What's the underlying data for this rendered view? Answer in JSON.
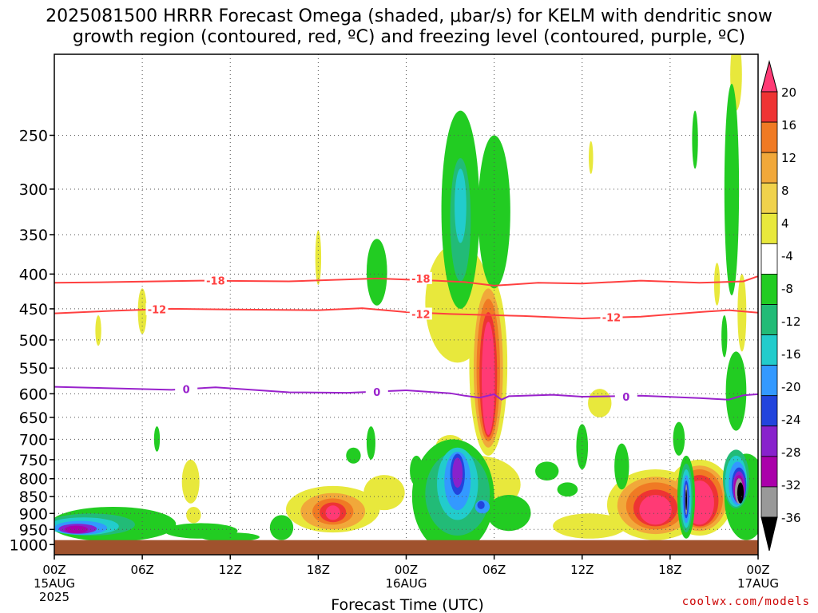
{
  "chart_data": {
    "type": "heatmap",
    "title_line1": "2025081500 HRRR Forecast Omega (shaded, μbar/s) for KELM with dendritic snow",
    "title_line2": "growth region (contoured, red, ºC) and freezing level (contoured, purple, ºC)",
    "xlabel": "Forecast Time (UTC)",
    "ylabel": "",
    "x_unit": "hour",
    "xlim": [
      0,
      48
    ],
    "y_axis_scale": "pressure",
    "ylim": [
      1035,
      190
    ],
    "ground_top": 985,
    "y_ticks": [
      250,
      300,
      350,
      400,
      450,
      500,
      550,
      600,
      650,
      700,
      750,
      800,
      850,
      900,
      950,
      1000
    ],
    "x_ticks": [
      {
        "hour": 0,
        "label": "00Z",
        "sub1": "15AUG",
        "sub2": "2025"
      },
      {
        "hour": 6,
        "label": "06Z",
        "sub1": "",
        "sub2": ""
      },
      {
        "hour": 12,
        "label": "12Z",
        "sub1": "",
        "sub2": ""
      },
      {
        "hour": 18,
        "label": "18Z",
        "sub1": "",
        "sub2": ""
      },
      {
        "hour": 24,
        "label": "00Z",
        "sub1": "16AUG",
        "sub2": ""
      },
      {
        "hour": 30,
        "label": "06Z",
        "sub1": "",
        "sub2": ""
      },
      {
        "hour": 36,
        "label": "12Z",
        "sub1": "",
        "sub2": ""
      },
      {
        "hour": 42,
        "label": "18Z",
        "sub1": "",
        "sub2": ""
      },
      {
        "hour": 48,
        "label": "00Z",
        "sub1": "17AUG",
        "sub2": ""
      }
    ],
    "grid": true,
    "colorbar": {
      "levels": [
        "20",
        "16",
        "12",
        "8",
        "4",
        "-4",
        "-8",
        "-12",
        "-16",
        "-20",
        "-24",
        "-28",
        "-32",
        "-36"
      ],
      "colors": [
        "#ff3a75",
        "#ee3333",
        "#f07a24",
        "#f1a83a",
        "#f0d24c",
        "#e8e83c",
        "#ffffff",
        "#22cc22",
        "#22bb77",
        "#22cccc",
        "#3399ff",
        "#2244dd",
        "#8822cc",
        "#aa00aa",
        "#999999",
        "#000000"
      ]
    },
    "contours": [
      {
        "name": "-18",
        "color": "#ff4040",
        "values": [
          [
            0,
            412
          ],
          [
            4,
            411
          ],
          [
            10,
            409
          ],
          [
            16,
            410
          ],
          [
            22,
            406
          ],
          [
            26,
            409
          ],
          [
            28,
            411
          ],
          [
            30,
            416
          ],
          [
            33,
            412
          ],
          [
            36,
            413
          ],
          [
            40,
            409
          ],
          [
            44,
            412
          ],
          [
            47,
            410
          ],
          [
            48,
            403
          ]
        ],
        "labels": [
          [
            11,
            409
          ],
          [
            25,
            406
          ]
        ]
      },
      {
        "name": "-12",
        "color": "#ff4040",
        "values": [
          [
            0,
            457
          ],
          [
            4,
            453
          ],
          [
            8,
            450
          ],
          [
            12,
            451
          ],
          [
            18,
            452
          ],
          [
            21,
            449
          ],
          [
            24,
            455
          ],
          [
            27,
            458
          ],
          [
            32,
            461
          ],
          [
            36,
            465
          ],
          [
            40,
            462
          ],
          [
            44,
            455
          ],
          [
            46,
            452
          ],
          [
            48,
            456
          ]
        ],
        "labels": [
          [
            7,
            451
          ],
          [
            25,
            458
          ],
          [
            38,
            463
          ]
        ]
      },
      {
        "name": "0",
        "color": "#9922cc",
        "values": [
          [
            0,
            586
          ],
          [
            4,
            589
          ],
          [
            8,
            592
          ],
          [
            11,
            587
          ],
          [
            16,
            597
          ],
          [
            20,
            598
          ],
          [
            24,
            593
          ],
          [
            27,
            599
          ],
          [
            28,
            604
          ],
          [
            29,
            608
          ],
          [
            30,
            601
          ],
          [
            30.5,
            612
          ],
          [
            31,
            605
          ],
          [
            34,
            602
          ],
          [
            36,
            606
          ],
          [
            40,
            604
          ],
          [
            44,
            609
          ],
          [
            46,
            612
          ],
          [
            47,
            603
          ],
          [
            48,
            601
          ]
        ],
        "labels": [
          [
            9,
            591
          ],
          [
            22,
            596
          ],
          [
            39,
            606
          ]
        ]
      }
    ],
    "shaded_regions": [
      {
        "level": "4",
        "color": "#e8e83c",
        "cx": 46.5,
        "cy": 205,
        "rx": 0.4,
        "ry": 25
      },
      {
        "level": "4",
        "color": "#e8e83c",
        "cx": 36.6,
        "cy": 270,
        "rx": 0.15,
        "ry": 15
      },
      {
        "level": "4",
        "color": "#e8e83c",
        "cx": 27.2,
        "cy": 305,
        "rx": 0.25,
        "ry": 40
      },
      {
        "level": "4",
        "color": "#e8e83c",
        "cx": 18,
        "cy": 380,
        "rx": 0.2,
        "ry": 35
      },
      {
        "level": "4",
        "color": "#e8e83c",
        "cx": 6,
        "cy": 455,
        "rx": 0.3,
        "ry": 35
      },
      {
        "level": "4",
        "color": "#e8e83c",
        "cx": 3,
        "cy": 485,
        "rx": 0.2,
        "ry": 25
      },
      {
        "level": "4",
        "color": "#e8e83c",
        "cx": 45.2,
        "cy": 415,
        "rx": 0.2,
        "ry": 30
      },
      {
        "level": "4",
        "color": "#e8e83c",
        "cx": 46.9,
        "cy": 460,
        "rx": 0.3,
        "ry": 60
      },
      {
        "level": "4",
        "color": "#e8e83c",
        "cx": 27.5,
        "cy": 450,
        "rx": 2.2,
        "ry": 90
      },
      {
        "level": "4",
        "color": "#e8e83c",
        "cx": 29.6,
        "cy": 570,
        "rx": 1.3,
        "ry": 170
      },
      {
        "level": "4",
        "color": "#e8e83c",
        "cx": 37.2,
        "cy": 620,
        "rx": 0.8,
        "ry": 30
      },
      {
        "level": "4",
        "color": "#e8e83c",
        "cx": 9.3,
        "cy": 810,
        "rx": 0.6,
        "ry": 60
      },
      {
        "level": "4",
        "color": "#e8e83c",
        "cx": 9.5,
        "cy": 905,
        "rx": 0.5,
        "ry": 25
      },
      {
        "level": "4",
        "color": "#e8e83c",
        "cx": 19,
        "cy": 890,
        "rx": 3.2,
        "ry": 70
      },
      {
        "level": "4",
        "color": "#e8e83c",
        "cx": 22.5,
        "cy": 840,
        "rx": 1.4,
        "ry": 50
      },
      {
        "level": "4",
        "color": "#e8e83c",
        "cx": 27,
        "cy": 720,
        "rx": 1.0,
        "ry": 30
      },
      {
        "level": "4",
        "color": "#e8e83c",
        "cx": 36.5,
        "cy": 940,
        "rx": 2.5,
        "ry": 40
      },
      {
        "level": "4",
        "color": "#e8e83c",
        "cx": 41,
        "cy": 880,
        "rx": 3.3,
        "ry": 105
      },
      {
        "level": "4",
        "color": "#e8e83c",
        "cx": 44,
        "cy": 860,
        "rx": 2.3,
        "ry": 110
      },
      {
        "level": "4",
        "color": "#e8e83c",
        "cx": 28.8,
        "cy": 820,
        "rx": 3.0,
        "ry": 80
      },
      {
        "level": "8",
        "color": "#f1a83a",
        "cx": 19,
        "cy": 895,
        "rx": 2.2,
        "ry": 55
      },
      {
        "level": "8",
        "color": "#f1a83a",
        "cx": 41,
        "cy": 880,
        "rx": 2.6,
        "ry": 85
      },
      {
        "level": "8",
        "color": "#f1a83a",
        "cx": 44,
        "cy": 860,
        "rx": 1.9,
        "ry": 95
      },
      {
        "level": "8",
        "color": "#f1a83a",
        "cx": 29.6,
        "cy": 570,
        "rx": 1.0,
        "ry": 150
      },
      {
        "level": "12",
        "color": "#f07a24",
        "cx": 19,
        "cy": 895,
        "rx": 1.4,
        "ry": 40
      },
      {
        "level": "12",
        "color": "#f07a24",
        "cx": 41,
        "cy": 880,
        "rx": 2.0,
        "ry": 70
      },
      {
        "level": "12",
        "color": "#f07a24",
        "cx": 44,
        "cy": 860,
        "rx": 1.6,
        "ry": 85
      },
      {
        "level": "12",
        "color": "#f07a24",
        "cx": 29.6,
        "cy": 570,
        "rx": 0.8,
        "ry": 135
      },
      {
        "level": "16",
        "color": "#ee3333",
        "cx": 19,
        "cy": 897,
        "rx": 0.9,
        "ry": 30
      },
      {
        "level": "16",
        "color": "#ee3333",
        "cx": 41,
        "cy": 885,
        "rx": 1.5,
        "ry": 55
      },
      {
        "level": "16",
        "color": "#ee3333",
        "cx": 44,
        "cy": 865,
        "rx": 1.3,
        "ry": 75
      },
      {
        "level": "16",
        "color": "#ee3333",
        "cx": 29.6,
        "cy": 575,
        "rx": 0.6,
        "ry": 120
      },
      {
        "level": "20",
        "color": "#ff3a75",
        "cx": 19,
        "cy": 898,
        "rx": 0.5,
        "ry": 22
      },
      {
        "level": "20",
        "color": "#ff3a75",
        "cx": 41,
        "cy": 890,
        "rx": 1.1,
        "ry": 45
      },
      {
        "level": "20",
        "color": "#ff3a75",
        "cx": 44,
        "cy": 870,
        "rx": 1.0,
        "ry": 65
      },
      {
        "level": "20",
        "color": "#ff3a75",
        "cx": 29.6,
        "cy": 580,
        "rx": 0.45,
        "ry": 110
      },
      {
        "level": "-4",
        "color": "#22cc22",
        "cx": 43.7,
        "cy": 255,
        "rx": 0.2,
        "ry": 25
      },
      {
        "level": "-4",
        "color": "#22cc22",
        "cx": 46.2,
        "cy": 320,
        "rx": 0.5,
        "ry": 110
      },
      {
        "level": "-4",
        "color": "#22cc22",
        "cx": 27.7,
        "cy": 340,
        "rx": 1.3,
        "ry": 110
      },
      {
        "level": "-4",
        "color": "#22cc22",
        "cx": 30,
        "cy": 335,
        "rx": 1.1,
        "ry": 85
      },
      {
        "level": "-4",
        "color": "#22cc22",
        "cx": 22,
        "cy": 400,
        "rx": 0.7,
        "ry": 45
      },
      {
        "level": "-4",
        "color": "#22cc22",
        "cx": 45.7,
        "cy": 495,
        "rx": 0.2,
        "ry": 35
      },
      {
        "level": "-4",
        "color": "#22cc22",
        "cx": 46.5,
        "cy": 600,
        "rx": 0.7,
        "ry": 80
      },
      {
        "level": "-4",
        "color": "#22cc22",
        "cx": 7,
        "cy": 700,
        "rx": 0.2,
        "ry": 30
      },
      {
        "level": "-4",
        "color": "#22cc22",
        "cx": 20.4,
        "cy": 740,
        "rx": 0.5,
        "ry": 20
      },
      {
        "level": "-4",
        "color": "#22cc22",
        "cx": 21.6,
        "cy": 710,
        "rx": 0.3,
        "ry": 40
      },
      {
        "level": "-4",
        "color": "#22cc22",
        "cx": 24.7,
        "cy": 780,
        "rx": 0.45,
        "ry": 40
      },
      {
        "level": "-4",
        "color": "#22cc22",
        "cx": 33.6,
        "cy": 780,
        "rx": 0.8,
        "ry": 25
      },
      {
        "level": "-4",
        "color": "#22cc22",
        "cx": 35,
        "cy": 830,
        "rx": 0.7,
        "ry": 20
      },
      {
        "level": "-4",
        "color": "#22cc22",
        "cx": 36,
        "cy": 720,
        "rx": 0.4,
        "ry": 55
      },
      {
        "level": "-4",
        "color": "#22cc22",
        "cx": 38.7,
        "cy": 770,
        "rx": 0.5,
        "ry": 60
      },
      {
        "level": "-4",
        "color": "#22cc22",
        "cx": 42.6,
        "cy": 700,
        "rx": 0.4,
        "ry": 40
      },
      {
        "level": "-4",
        "color": "#22cc22",
        "cx": 43.1,
        "cy": 860,
        "rx": 0.6,
        "ry": 120
      },
      {
        "level": "-4",
        "color": "#22cc22",
        "cx": 47.2,
        "cy": 860,
        "rx": 1.5,
        "ry": 125
      },
      {
        "level": "-4",
        "color": "#22cc22",
        "cx": 15.5,
        "cy": 945,
        "rx": 0.8,
        "ry": 40
      },
      {
        "level": "-4",
        "color": "#22cc22",
        "cx": 27.2,
        "cy": 870,
        "rx": 2.8,
        "ry": 170
      },
      {
        "level": "-4",
        "color": "#22cc22",
        "cx": 31,
        "cy": 900,
        "rx": 1.5,
        "ry": 55
      },
      {
        "level": "-4",
        "color": "#22cc22",
        "cx": 4,
        "cy": 935,
        "rx": 4.3,
        "ry": 55
      },
      {
        "level": "-4",
        "color": "#22cc22",
        "cx": 10,
        "cy": 955,
        "rx": 2.5,
        "ry": 25
      },
      {
        "level": "-4",
        "color": "#22cc22",
        "cx": 12,
        "cy": 975,
        "rx": 2,
        "ry": 15
      },
      {
        "level": "-8",
        "color": "#22bb77",
        "cx": 27.7,
        "cy": 340,
        "rx": 0.7,
        "ry": 70
      },
      {
        "level": "-8",
        "color": "#22bb77",
        "cx": 46.5,
        "cy": 805,
        "rx": 0.9,
        "ry": 80
      },
      {
        "level": "-8",
        "color": "#22bb77",
        "cx": 43.1,
        "cy": 860,
        "rx": 0.45,
        "ry": 100
      },
      {
        "level": "-8",
        "color": "#22bb77",
        "cx": 27.5,
        "cy": 850,
        "rx": 2.2,
        "ry": 120
      },
      {
        "level": "-8",
        "color": "#22bb77",
        "cx": 2.5,
        "cy": 935,
        "rx": 3.0,
        "ry": 35
      },
      {
        "level": "-12",
        "color": "#22cccc",
        "cx": 27.7,
        "cy": 320,
        "rx": 0.4,
        "ry": 40
      },
      {
        "level": "-12",
        "color": "#22cccc",
        "cx": 27.5,
        "cy": 820,
        "rx": 1.4,
        "ry": 100
      },
      {
        "level": "-12",
        "color": "#22cccc",
        "cx": 43.1,
        "cy": 860,
        "rx": 0.35,
        "ry": 85
      },
      {
        "level": "-12",
        "color": "#22cccc",
        "cx": 46.5,
        "cy": 810,
        "rx": 0.75,
        "ry": 70
      },
      {
        "level": "-12",
        "color": "#22cccc",
        "cx": 2,
        "cy": 940,
        "rx": 2.4,
        "ry": 28
      },
      {
        "level": "-16",
        "color": "#3399ff",
        "cx": 27.5,
        "cy": 810,
        "rx": 0.9,
        "ry": 80
      },
      {
        "level": "-16",
        "color": "#3399ff",
        "cx": 29.2,
        "cy": 880,
        "rx": 0.5,
        "ry": 20
      },
      {
        "level": "-16",
        "color": "#3399ff",
        "cx": 43.1,
        "cy": 860,
        "rx": 0.25,
        "ry": 70
      },
      {
        "level": "-16",
        "color": "#3399ff",
        "cx": 46.6,
        "cy": 815,
        "rx": 0.6,
        "ry": 60
      },
      {
        "level": "-16",
        "color": "#3399ff",
        "cx": 1.8,
        "cy": 945,
        "rx": 1.8,
        "ry": 22
      },
      {
        "level": "-20",
        "color": "#2244dd",
        "cx": 27.5,
        "cy": 790,
        "rx": 0.5,
        "ry": 55
      },
      {
        "level": "-20",
        "color": "#2244dd",
        "cx": 29.1,
        "cy": 875,
        "rx": 0.25,
        "ry": 12
      },
      {
        "level": "-20",
        "color": "#2244dd",
        "cx": 43.1,
        "cy": 860,
        "rx": 0.18,
        "ry": 55
      },
      {
        "level": "-20",
        "color": "#2244dd",
        "cx": 46.7,
        "cy": 820,
        "rx": 0.5,
        "ry": 50
      },
      {
        "level": "-24",
        "color": "#8822cc",
        "cx": 27.5,
        "cy": 785,
        "rx": 0.35,
        "ry": 40
      },
      {
        "level": "-24",
        "color": "#8822cc",
        "cx": 46.7,
        "cy": 825,
        "rx": 0.42,
        "ry": 45
      },
      {
        "level": "-24",
        "color": "#8822cc",
        "cx": 1.6,
        "cy": 948,
        "rx": 1.3,
        "ry": 16
      },
      {
        "level": "-28",
        "color": "#aa00aa",
        "cx": 1.5,
        "cy": 950,
        "rx": 0.8,
        "ry": 12
      },
      {
        "level": "-28",
        "color": "#aa00aa",
        "cx": 46.7,
        "cy": 830,
        "rx": 0.36,
        "ry": 40
      },
      {
        "level": "-32",
        "color": "#999999",
        "cx": 46.7,
        "cy": 835,
        "rx": 0.28,
        "ry": 36
      },
      {
        "level": "-32",
        "color": "#999999",
        "cx": 43.1,
        "cy": 860,
        "rx": 0.08,
        "ry": 45
      },
      {
        "level": "-36",
        "color": "#000000",
        "cx": 46.8,
        "cy": 840,
        "rx": 0.22,
        "ry": 30
      },
      {
        "level": "-36",
        "color": "#000000",
        "cx": 43.1,
        "cy": 860,
        "rx": 0.05,
        "ry": 30
      }
    ]
  },
  "credit": "coolwx.com/models"
}
